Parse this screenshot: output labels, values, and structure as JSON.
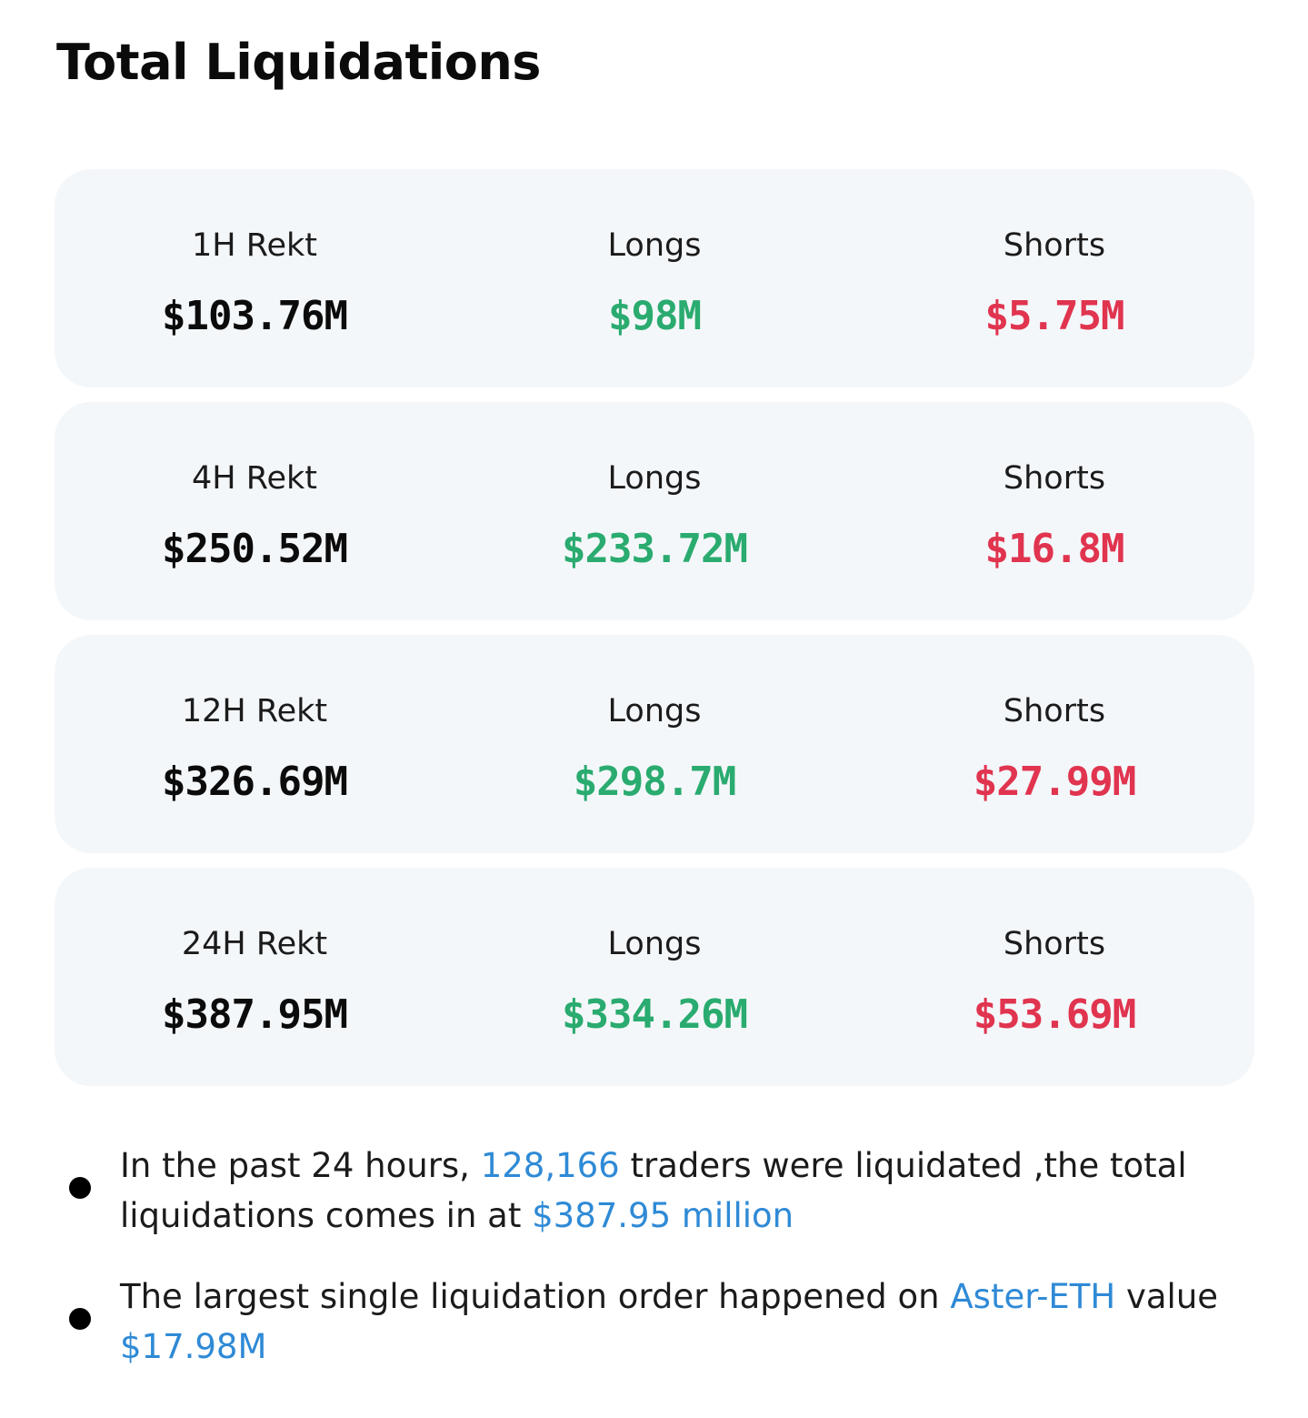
{
  "title": "Total Liquidations",
  "cards": [
    {
      "period_label": "1H Rekt",
      "total": "$103.76M",
      "longs_label": "Longs",
      "longs": "$98M",
      "shorts_label": "Shorts",
      "shorts": "$5.75M"
    },
    {
      "period_label": "4H Rekt",
      "total": "$250.52M",
      "longs_label": "Longs",
      "longs": "$233.72M",
      "shorts_label": "Shorts",
      "shorts": "$16.8M"
    },
    {
      "period_label": "12H Rekt",
      "total": "$326.69M",
      "longs_label": "Longs",
      "longs": "$298.7M",
      "shorts_label": "Shorts",
      "shorts": "$27.99M"
    },
    {
      "period_label": "24H Rekt",
      "total": "$387.95M",
      "longs_label": "Longs",
      "longs": "$334.26M",
      "shorts_label": "Shorts",
      "shorts": "$53.69M"
    }
  ],
  "notes": [
    {
      "text1": "In the past 24 hours, ",
      "traders_count": "128,166",
      "text2": " traders were liquidated ,the total liquidations comes in at ",
      "total_amount": "$387.95 million"
    },
    {
      "text1": "The largest single liquidation order happened on ",
      "pair": "Aster-ETH",
      "text2": " value ",
      "value": "$17.98M"
    }
  ],
  "colors": {
    "card_background": "#f4f7fa",
    "longs": "#2aab6f",
    "shorts": "#e0344f",
    "highlight": "#2f8ad6",
    "text": "#0b0b0b"
  },
  "icons": {
    "bullet": "bullet-dot-icon"
  }
}
